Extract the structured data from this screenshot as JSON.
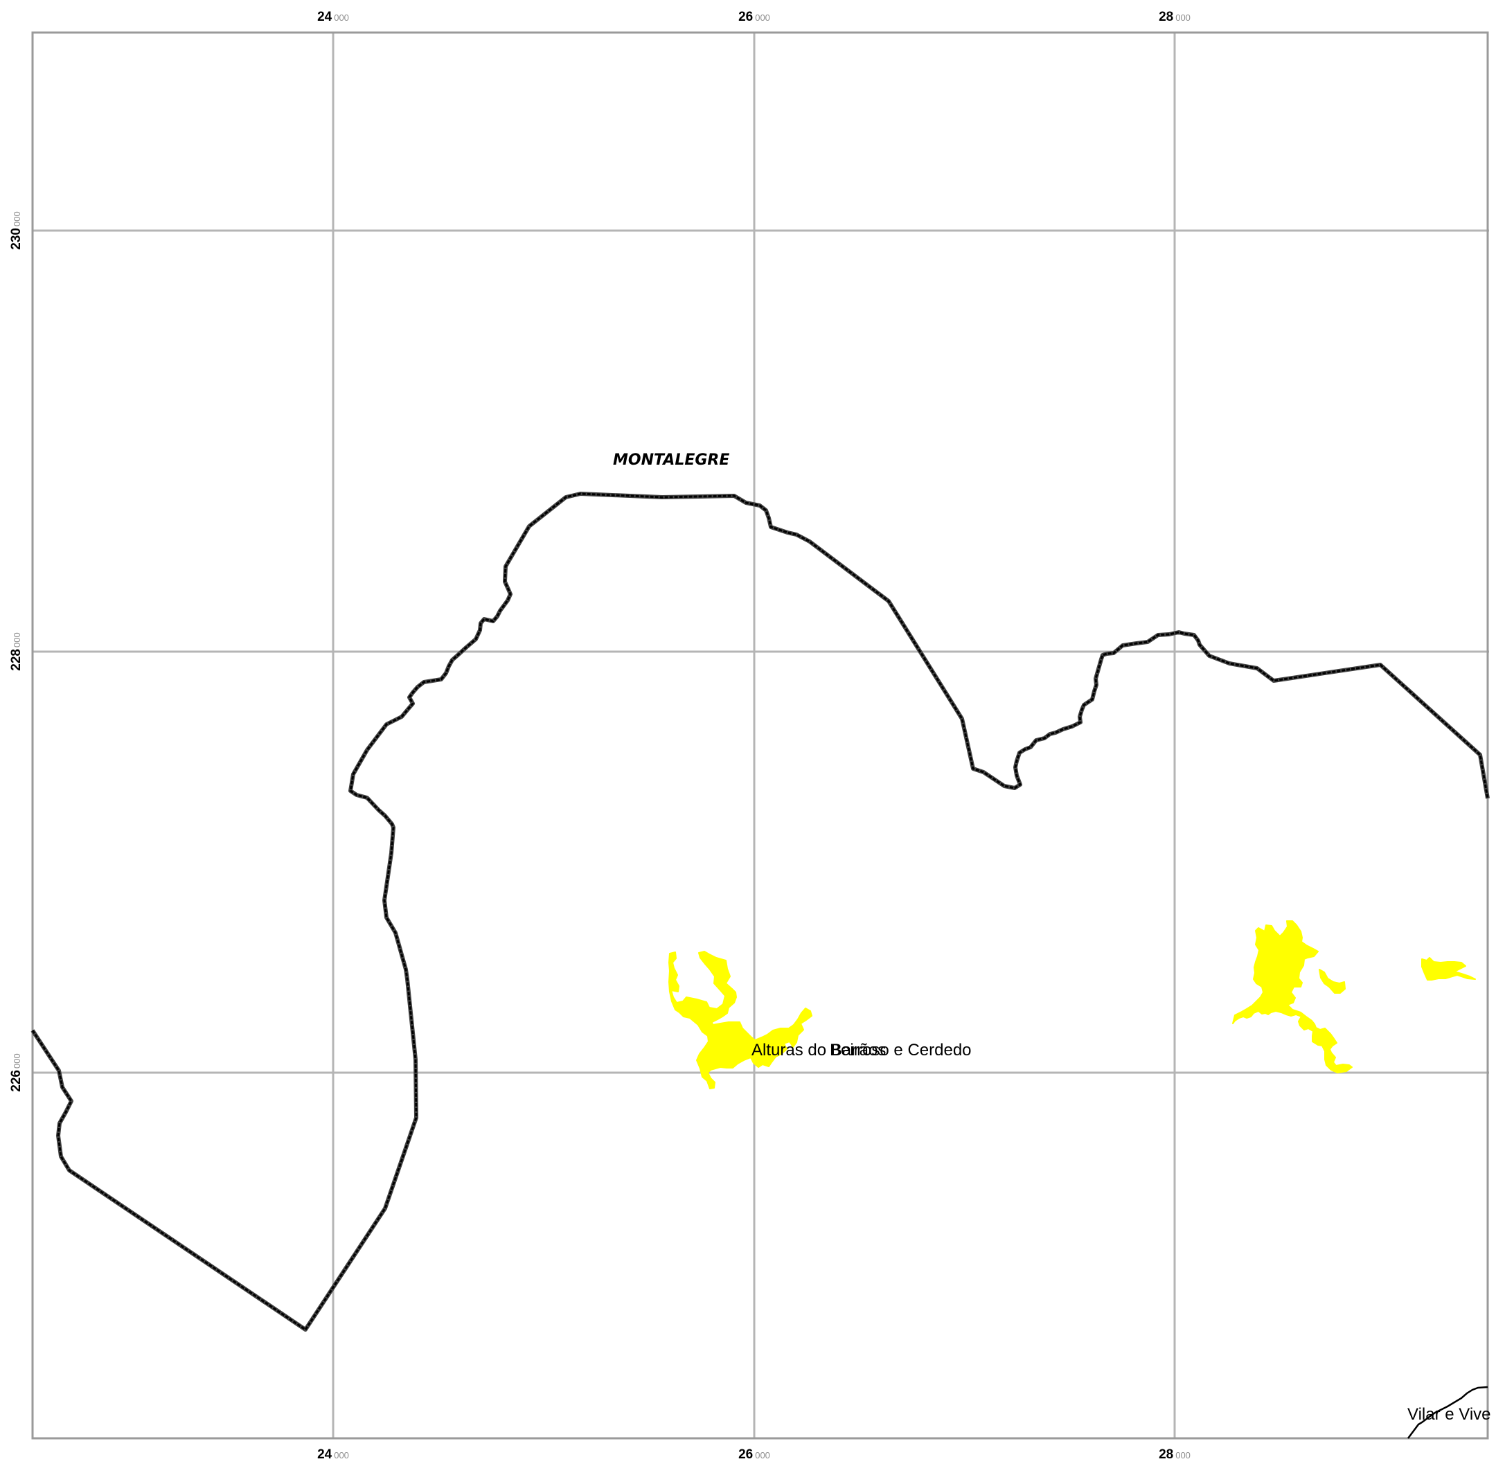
{
  "map": {
    "grid": {
      "x_ticks": [
        {
          "major": "24",
          "minor": "000"
        },
        {
          "major": "26",
          "minor": "000"
        },
        {
          "major": "28",
          "minor": "000"
        }
      ],
      "y_ticks": [
        {
          "major": "230",
          "minor": "000"
        },
        {
          "major": "228",
          "minor": "000"
        },
        {
          "major": "226",
          "minor": "000"
        }
      ]
    },
    "labels": {
      "municipality": "MONTALEGRE",
      "parish_overlap_a": "Alturas do Barroso e Cerdedo",
      "parish_overlap_b": "Beirãos",
      "parish_corner": "Vilar e Vive"
    },
    "colors": {
      "settlement_fill": "#ffff00",
      "boundary": "#000000",
      "grid": "#b5b5b5"
    }
  }
}
